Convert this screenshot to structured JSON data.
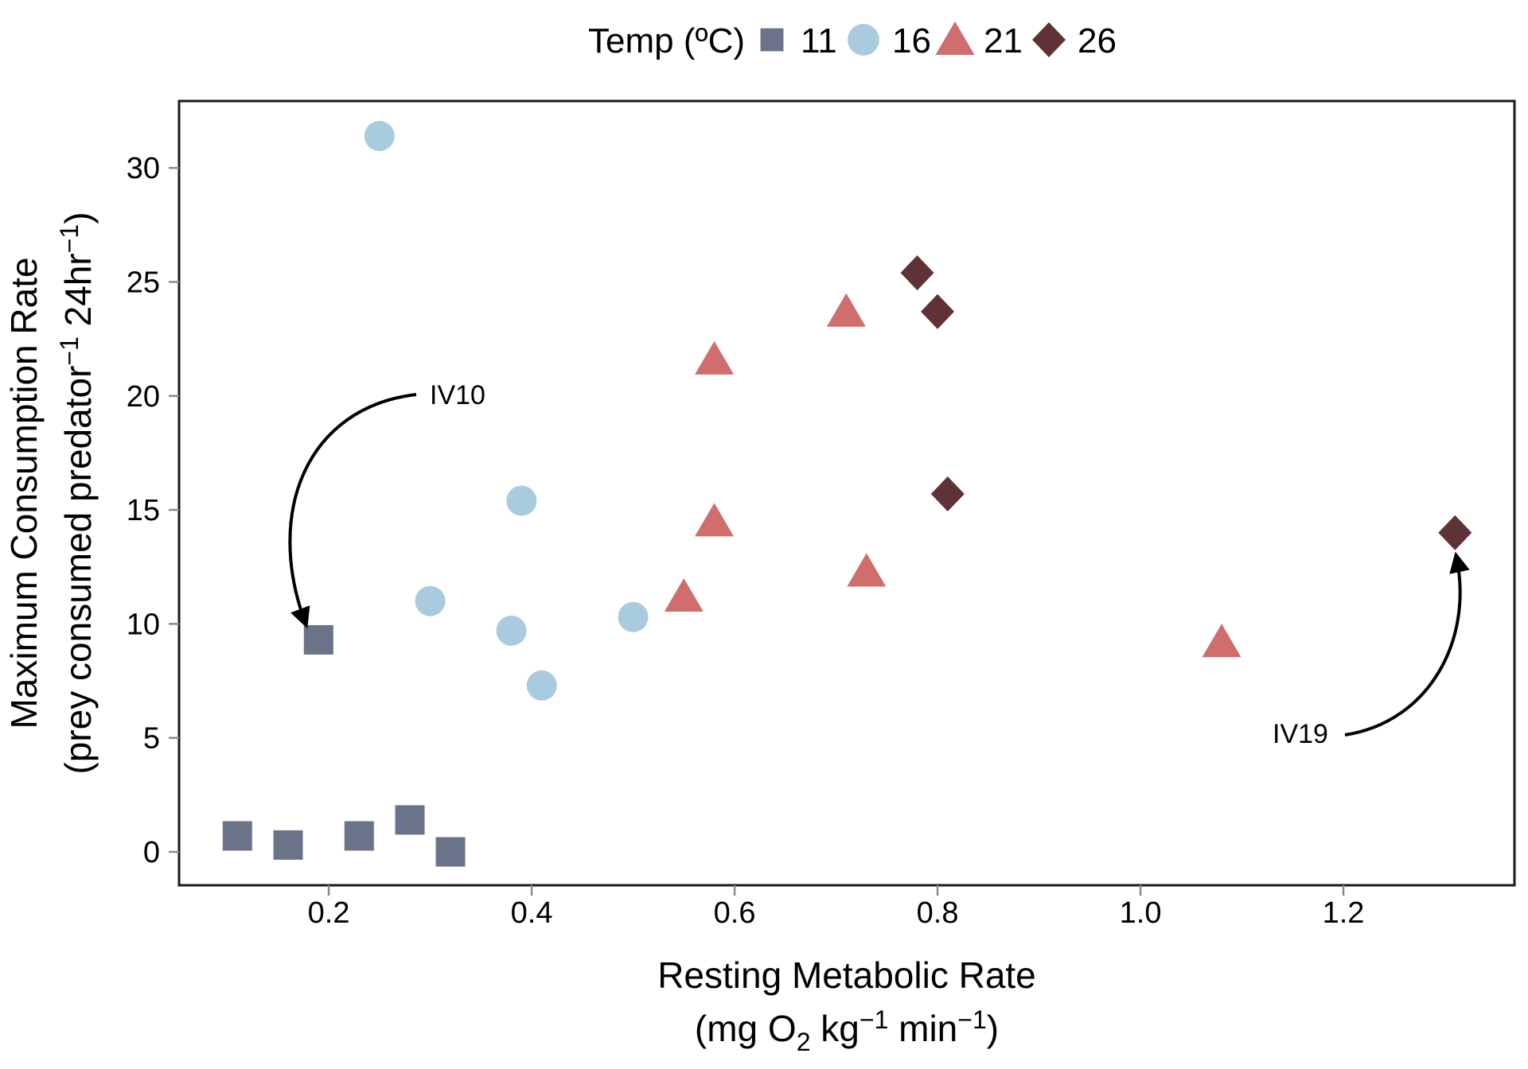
{
  "chart_data": {
    "type": "scatter",
    "title": "",
    "xlabel": "Resting Metabolic Rate",
    "xlabel_units_tokens": [
      {
        "t": "(mg O"
      },
      {
        "t": "2",
        "s": "sub"
      },
      {
        "t": " kg"
      },
      {
        "t": "-1",
        "s": "sup"
      },
      {
        "t": " min"
      },
      {
        "t": "-1",
        "s": "sup"
      },
      {
        "t": ")"
      }
    ],
    "ylabel": "Maximum Consumption Rate",
    "ylabel_units_tokens": [
      {
        "t": "(prey consumed predator"
      },
      {
        "t": "-1",
        "s": "sup"
      },
      {
        "t": " 24hr"
      },
      {
        "t": "-1",
        "s": "sup"
      },
      {
        "t": ")"
      }
    ],
    "x_ticks": [
      0.2,
      0.4,
      0.6,
      0.8,
      1.0,
      1.2
    ],
    "y_ticks": [
      0,
      5,
      10,
      15,
      20,
      25,
      30
    ],
    "xlim": [
      0.05,
      1.37
    ],
    "ylim": [
      -1.5,
      32.9
    ],
    "grid": "off",
    "legend": {
      "title": "Temp (ºC)",
      "position": "top-center",
      "items": [
        {
          "label": "11",
          "marker": "square",
          "color": "#6A7387"
        },
        {
          "label": "16",
          "marker": "circle",
          "color": "#A9CBDE"
        },
        {
          "label": "21",
          "marker": "triangle",
          "color": "#D06D6D"
        },
        {
          "label": "26",
          "marker": "diamond",
          "color": "#5F3237"
        }
      ]
    },
    "series": [
      {
        "name": "11",
        "marker": "square",
        "color": "#6A7387",
        "points": [
          [
            0.11,
            0.7
          ],
          [
            0.16,
            0.3
          ],
          [
            0.19,
            9.3
          ],
          [
            0.23,
            0.7
          ],
          [
            0.28,
            1.4
          ],
          [
            0.32,
            0.0
          ]
        ]
      },
      {
        "name": "16",
        "marker": "circle",
        "color": "#A9CBDE",
        "points": [
          [
            0.25,
            31.4
          ],
          [
            0.3,
            11.0
          ],
          [
            0.38,
            9.7
          ],
          [
            0.39,
            15.4
          ],
          [
            0.41,
            7.3
          ],
          [
            0.5,
            10.3
          ]
        ]
      },
      {
        "name": "21",
        "marker": "triangle",
        "color": "#D06D6D",
        "points": [
          [
            0.55,
            11.2
          ],
          [
            0.58,
            14.5
          ],
          [
            0.58,
            21.6
          ],
          [
            0.71,
            23.7
          ],
          [
            0.73,
            12.3
          ],
          [
            1.08,
            9.2
          ]
        ]
      },
      {
        "name": "26",
        "marker": "diamond",
        "color": "#5F3237",
        "points": [
          [
            0.78,
            25.4
          ],
          [
            0.8,
            23.7
          ],
          [
            0.81,
            15.7
          ],
          [
            1.31,
            14.0
          ]
        ]
      }
    ],
    "annotations": [
      {
        "label": "IV10",
        "target_point": [
          0.19,
          9.3
        ],
        "target_series": "11"
      },
      {
        "label": "IV19",
        "target_point": [
          1.31,
          14.0
        ],
        "target_series": "26"
      }
    ],
    "colors": {
      "temp_11": "#6A7387",
      "temp_16": "#A9CBDE",
      "temp_21": "#D06D6D",
      "temp_26": "#5F3237",
      "panel_border": "#1a1a1a",
      "tick_mark": "#8a8a8a",
      "annotation_arrow": "#000000"
    }
  }
}
